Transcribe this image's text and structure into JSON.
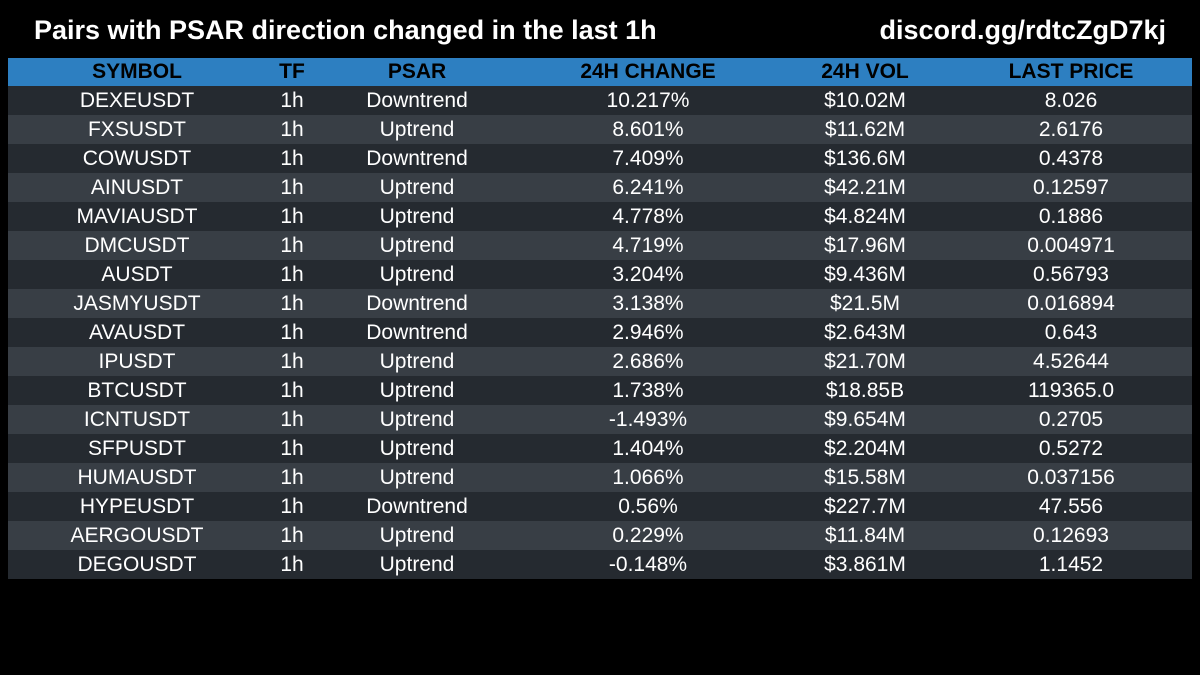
{
  "header": {
    "title": "Pairs with PSAR direction changed in the last 1h",
    "link": "discord.gg/rdtcZgD7kj"
  },
  "colors": {
    "background": "#000000",
    "header_row": "#2d7fc1",
    "row_dark": "#252a30",
    "row_light": "#383e45",
    "text": "#ffffff"
  },
  "table": {
    "columns": [
      "SYMBOL",
      "TF",
      "PSAR",
      "24H CHANGE",
      "24H VOL",
      "LAST PRICE"
    ],
    "rows": [
      [
        "DEXEUSDT",
        "1h",
        "Downtrend",
        "10.217%",
        "$10.02M",
        "8.026"
      ],
      [
        "FXSUSDT",
        "1h",
        "Uptrend",
        "8.601%",
        "$11.62M",
        "2.6176"
      ],
      [
        "COWUSDT",
        "1h",
        "Downtrend",
        "7.409%",
        "$136.6M",
        "0.4378"
      ],
      [
        "AINUSDT",
        "1h",
        "Uptrend",
        "6.241%",
        "$42.21M",
        "0.12597"
      ],
      [
        "MAVIAUSDT",
        "1h",
        "Uptrend",
        "4.778%",
        "$4.824M",
        "0.1886"
      ],
      [
        "DMCUSDT",
        "1h",
        "Uptrend",
        "4.719%",
        "$17.96M",
        "0.004971"
      ],
      [
        "AUSDT",
        "1h",
        "Uptrend",
        "3.204%",
        "$9.436M",
        "0.56793"
      ],
      [
        "JASMYUSDT",
        "1h",
        "Downtrend",
        "3.138%",
        "$21.5M",
        "0.016894"
      ],
      [
        "AVAUSDT",
        "1h",
        "Downtrend",
        "2.946%",
        "$2.643M",
        "0.643"
      ],
      [
        "IPUSDT",
        "1h",
        "Uptrend",
        "2.686%",
        "$21.70M",
        "4.52644"
      ],
      [
        "BTCUSDT",
        "1h",
        "Uptrend",
        "1.738%",
        "$18.85B",
        "119365.0"
      ],
      [
        "ICNTUSDT",
        "1h",
        "Uptrend",
        "-1.493%",
        "$9.654M",
        "0.2705"
      ],
      [
        "SFPUSDT",
        "1h",
        "Uptrend",
        "1.404%",
        "$2.204M",
        "0.5272"
      ],
      [
        "HUMAUSDT",
        "1h",
        "Uptrend",
        "1.066%",
        "$15.58M",
        "0.037156"
      ],
      [
        "HYPEUSDT",
        "1h",
        "Downtrend",
        "0.56%",
        "$227.7M",
        "47.556"
      ],
      [
        "AERGOUSDT",
        "1h",
        "Uptrend",
        "0.229%",
        "$11.84M",
        "0.12693"
      ],
      [
        "DEGOUSDT",
        "1h",
        "Uptrend",
        "-0.148%",
        "$3.861M",
        "1.1452"
      ]
    ]
  }
}
